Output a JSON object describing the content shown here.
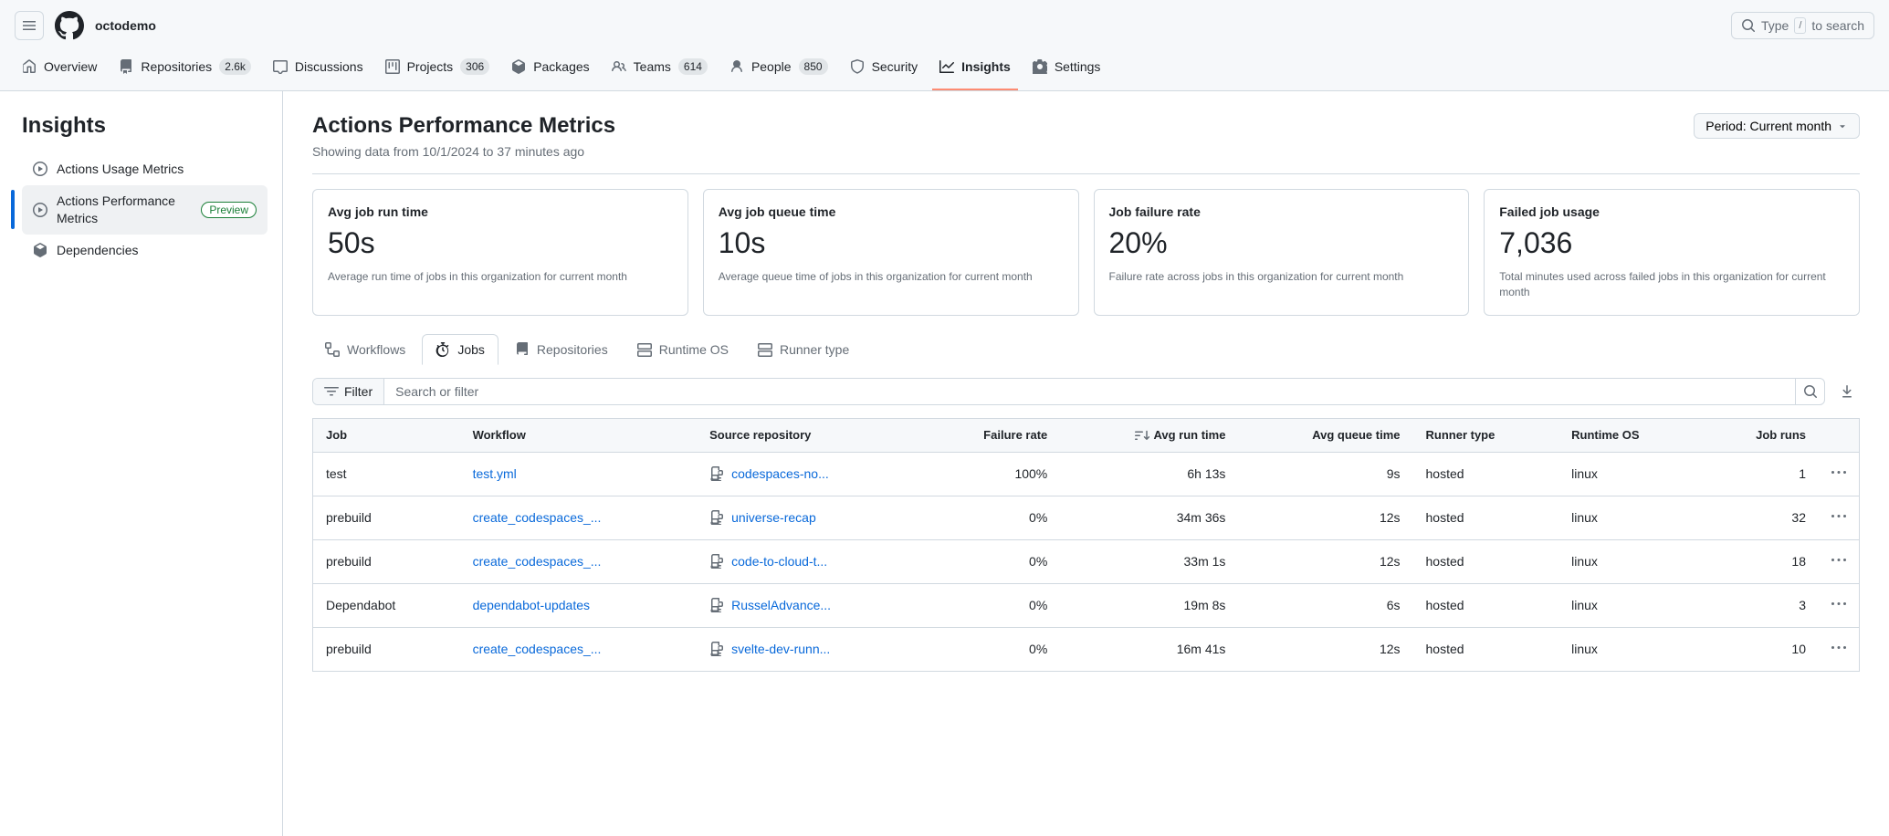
{
  "colors": {
    "accent": "#0969da",
    "active_tab_border": "#fd8c73",
    "preview_badge": "#1a7f37",
    "border": "#d1d9e0",
    "muted": "#656d76",
    "bg_subtle": "#f6f8fa"
  },
  "header": {
    "org": "octodemo",
    "search_prefix": "Type ",
    "search_kbd": "/",
    "search_suffix": " to search"
  },
  "nav": {
    "overview": "Overview",
    "repositories": "Repositories",
    "repositories_count": "2.6k",
    "discussions": "Discussions",
    "projects": "Projects",
    "projects_count": "306",
    "packages": "Packages",
    "teams": "Teams",
    "teams_count": "614",
    "people": "People",
    "people_count": "850",
    "security": "Security",
    "insights": "Insights",
    "settings": "Settings"
  },
  "sidebar": {
    "title": "Insights",
    "item_usage": "Actions Usage Metrics",
    "item_perf": "Actions Performance Metrics",
    "preview_label": "Preview",
    "item_deps": "Dependencies"
  },
  "page": {
    "title": "Actions Performance Metrics",
    "subtitle": "Showing data from 10/1/2024 to 37 minutes ago",
    "period_label": "Period: Current month"
  },
  "metrics": [
    {
      "title": "Avg job run time",
      "value": "50s",
      "desc": "Average run time of jobs in this organization for current month"
    },
    {
      "title": "Avg job queue time",
      "value": "10s",
      "desc": "Average queue time of jobs in this organization for current month"
    },
    {
      "title": "Job failure rate",
      "value": "20%",
      "desc": "Failure rate across jobs in this organization for current month"
    },
    {
      "title": "Failed job usage",
      "value": "7,036",
      "desc": "Total minutes used across failed jobs in this organization for current month"
    }
  ],
  "subtabs": {
    "workflows": "Workflows",
    "jobs": "Jobs",
    "repositories": "Repositories",
    "runtime_os": "Runtime OS",
    "runner_type": "Runner type"
  },
  "filter": {
    "label": "Filter",
    "placeholder": "Search or filter"
  },
  "columns": {
    "job": "Job",
    "workflow": "Workflow",
    "source_repo": "Source repository",
    "failure_rate": "Failure rate",
    "avg_run": "Avg run time",
    "avg_queue": "Avg queue time",
    "runner_type": "Runner type",
    "runtime_os": "Runtime OS",
    "job_runs": "Job runs"
  },
  "rows": [
    {
      "job": "test",
      "workflow": "test.yml",
      "repo": "codespaces-no...",
      "failure": "100%",
      "avg_run": "6h 13s",
      "avg_queue": "9s",
      "runner": "hosted",
      "os": "linux",
      "runs": "1"
    },
    {
      "job": "prebuild",
      "workflow": "create_codespaces_...",
      "repo": "universe-recap",
      "failure": "0%",
      "avg_run": "34m 36s",
      "avg_queue": "12s",
      "runner": "hosted",
      "os": "linux",
      "runs": "32"
    },
    {
      "job": "prebuild",
      "workflow": "create_codespaces_...",
      "repo": "code-to-cloud-t...",
      "failure": "0%",
      "avg_run": "33m 1s",
      "avg_queue": "12s",
      "runner": "hosted",
      "os": "linux",
      "runs": "18"
    },
    {
      "job": "Dependabot",
      "workflow": "dependabot-updates",
      "repo": "RusselAdvance...",
      "failure": "0%",
      "avg_run": "19m 8s",
      "avg_queue": "6s",
      "runner": "hosted",
      "os": "linux",
      "runs": "3"
    },
    {
      "job": "prebuild",
      "workflow": "create_codespaces_...",
      "repo": "svelte-dev-runn...",
      "failure": "0%",
      "avg_run": "16m 41s",
      "avg_queue": "12s",
      "runner": "hosted",
      "os": "linux",
      "runs": "10"
    }
  ]
}
